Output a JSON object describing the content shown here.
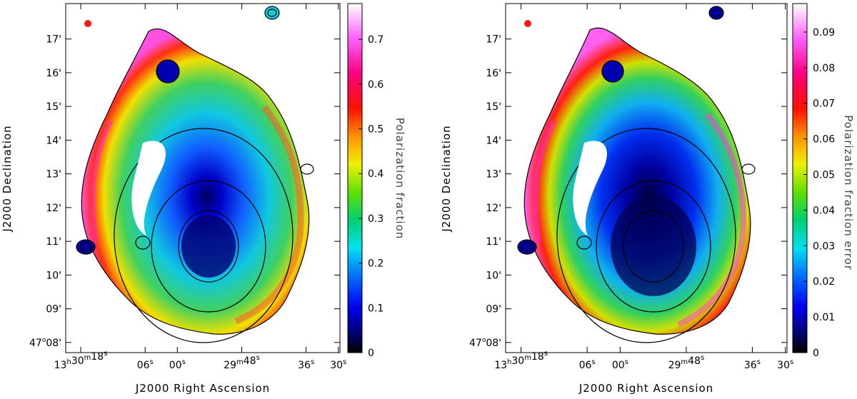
{
  "chart_data": [
    {
      "type": "heatmap",
      "title": "",
      "xlabel": "J2000 Right Ascension",
      "ylabel": "J2000 Declination",
      "colorbar_label": "Polarization fraction",
      "colorbar_ticks": [
        "0",
        "0.1",
        "0.2",
        "0.3",
        "0.4",
        "0.5",
        "0.6",
        "0.7"
      ],
      "colorbar_tick_values": [
        0,
        0.1,
        0.2,
        0.3,
        0.4,
        0.5,
        0.6,
        0.7
      ],
      "colorbar_range": [
        0,
        0.78
      ],
      "dec_ticks": [
        {
          "deg": "",
          "min": "17'",
          "value": 17
        },
        {
          "deg": "",
          "min": "16'",
          "value": 16
        },
        {
          "deg": "",
          "min": "15'",
          "value": 15
        },
        {
          "deg": "",
          "min": "14'",
          "value": 14
        },
        {
          "deg": "",
          "min": "13'",
          "value": 13
        },
        {
          "deg": "",
          "min": "12'",
          "value": 12
        },
        {
          "deg": "",
          "min": "11'",
          "value": 11
        },
        {
          "deg": "",
          "min": "10'",
          "value": 10
        },
        {
          "deg": "",
          "min": "09'",
          "value": 9
        },
        {
          "deg": "47",
          "min": "08'",
          "value": 8
        }
      ],
      "dec_range": [
        7.7,
        18.05
      ],
      "ra_ticks": [
        {
          "h": "13",
          "m": "30",
          "s": "18",
          "value": 18
        },
        {
          "h": "",
          "m": "",
          "s": "06",
          "value": 6
        },
        {
          "h": "",
          "m": "",
          "s": "00",
          "value": 0
        },
        {
          "h": "",
          "m": "29",
          "s": "48",
          "value": -12
        },
        {
          "h": "",
          "m": "",
          "s": "36",
          "value": -24
        },
        {
          "h": "",
          "m": "",
          "s": "30",
          "value": -30
        }
      ],
      "ra_range": [
        20.8,
        -30.3
      ]
    },
    {
      "type": "heatmap",
      "title": "",
      "xlabel": "J2000 Right Ascension",
      "ylabel": "J2000 Declination",
      "colorbar_label": "Polarization fraction error",
      "colorbar_ticks": [
        "0",
        "0.01",
        "0.02",
        "0.03",
        "0.04",
        "0.05",
        "0.06",
        "0.07",
        "0.08",
        "0.09"
      ],
      "colorbar_tick_values": [
        0,
        0.01,
        0.02,
        0.03,
        0.04,
        0.05,
        0.06,
        0.07,
        0.08,
        0.09
      ],
      "colorbar_range": [
        0,
        0.098
      ],
      "dec_ticks": [
        {
          "deg": "",
          "min": "17'",
          "value": 17
        },
        {
          "deg": "",
          "min": "16'",
          "value": 16
        },
        {
          "deg": "",
          "min": "15'",
          "value": 15
        },
        {
          "deg": "",
          "min": "14'",
          "value": 14
        },
        {
          "deg": "",
          "min": "13'",
          "value": 13
        },
        {
          "deg": "",
          "min": "12'",
          "value": 12
        },
        {
          "deg": "",
          "min": "11'",
          "value": 11
        },
        {
          "deg": "",
          "min": "10'",
          "value": 10
        },
        {
          "deg": "",
          "min": "09'",
          "value": 9
        },
        {
          "deg": "47",
          "min": "08'",
          "value": 8
        }
      ],
      "dec_range": [
        7.7,
        18.05
      ],
      "ra_ticks": [
        {
          "h": "13",
          "m": "30",
          "s": "18",
          "value": 18
        },
        {
          "h": "",
          "m": "",
          "s": "06",
          "value": 6
        },
        {
          "h": "",
          "m": "",
          "s": "00",
          "value": 0
        },
        {
          "h": "",
          "m": "29",
          "s": "48",
          "value": -12
        },
        {
          "h": "",
          "m": "",
          "s": "36",
          "value": -24
        },
        {
          "h": "",
          "m": "",
          "s": "30",
          "value": -30
        }
      ],
      "ra_range": [
        20.8,
        -30.3
      ]
    }
  ],
  "colors": {
    "beam_marker": "#ff1a1a",
    "frame": "#000000",
    "background": "#ffffff"
  }
}
